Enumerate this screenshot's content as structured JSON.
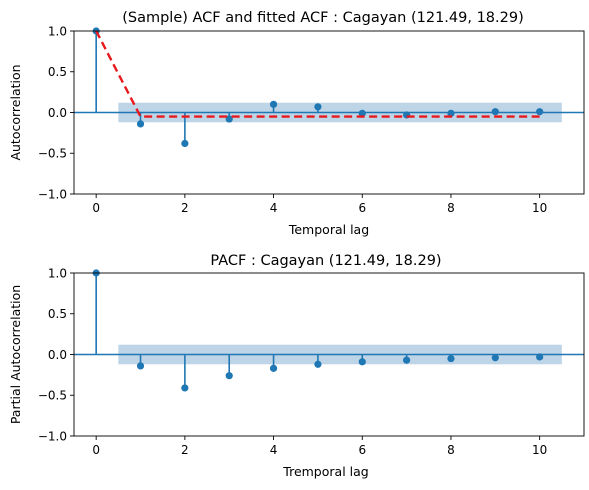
{
  "chart_data": [
    {
      "type": "stem",
      "title": "(Sample) ACF and fitted ACF : Cagayan (121.49, 18.29)",
      "xlabel": "Temporal lag",
      "ylabel": "Autocorrelation",
      "xlim": [
        -0.5,
        11.0
      ],
      "ylim": [
        -1.0,
        1.0
      ],
      "xticks": [
        0,
        2,
        4,
        6,
        8,
        10
      ],
      "xtick_labels": [
        "0",
        "2",
        "4",
        "6",
        "8",
        "10"
      ],
      "yticks": [
        -1.0,
        -0.5,
        0.0,
        0.5,
        1.0
      ],
      "ytick_labels": [
        "−1.0",
        "−0.5",
        "0.0",
        "0.5",
        "1.0"
      ],
      "confidence_band": {
        "x": [
          0.5,
          10.5
        ],
        "lower": -0.12,
        "upper": 0.12,
        "color": "#b3cde3"
      },
      "series": [
        {
          "kind": "stem",
          "color": "#1f77b4",
          "x": [
            0,
            1,
            2,
            3,
            4,
            5,
            6,
            7,
            8,
            9,
            10
          ],
          "values": [
            1.0,
            -0.14,
            -0.38,
            -0.08,
            0.1,
            0.07,
            -0.01,
            -0.03,
            -0.01,
            0.01,
            0.01
          ]
        },
        {
          "kind": "fitted-line",
          "color": "#e8191c",
          "x": [
            0,
            1,
            10
          ],
          "values": [
            1.0,
            -0.05,
            -0.05
          ]
        }
      ]
    },
    {
      "type": "stem",
      "title": "PACF : Cagayan (121.49, 18.29)",
      "xlabel": "Tremporal lag",
      "ylabel": "Partial Autocorrelation",
      "xlim": [
        -0.5,
        11.0
      ],
      "ylim": [
        -1.0,
        1.0
      ],
      "xticks": [
        0,
        2,
        4,
        6,
        8,
        10
      ],
      "xtick_labels": [
        "0",
        "2",
        "4",
        "6",
        "8",
        "10"
      ],
      "yticks": [
        -1.0,
        -0.5,
        0.0,
        0.5,
        1.0
      ],
      "ytick_labels": [
        "−1.0",
        "−0.5",
        "0.0",
        "0.5",
        "1.0"
      ],
      "confidence_band": {
        "x": [
          0.5,
          10.5
        ],
        "lower": -0.12,
        "upper": 0.12,
        "color": "#b3cde3"
      },
      "series": [
        {
          "kind": "stem",
          "color": "#1f77b4",
          "x": [
            0,
            1,
            2,
            3,
            4,
            5,
            6,
            7,
            8,
            9,
            10
          ],
          "values": [
            1.0,
            -0.14,
            -0.41,
            -0.26,
            -0.17,
            -0.12,
            -0.09,
            -0.07,
            -0.05,
            -0.04,
            -0.03
          ]
        }
      ]
    }
  ]
}
